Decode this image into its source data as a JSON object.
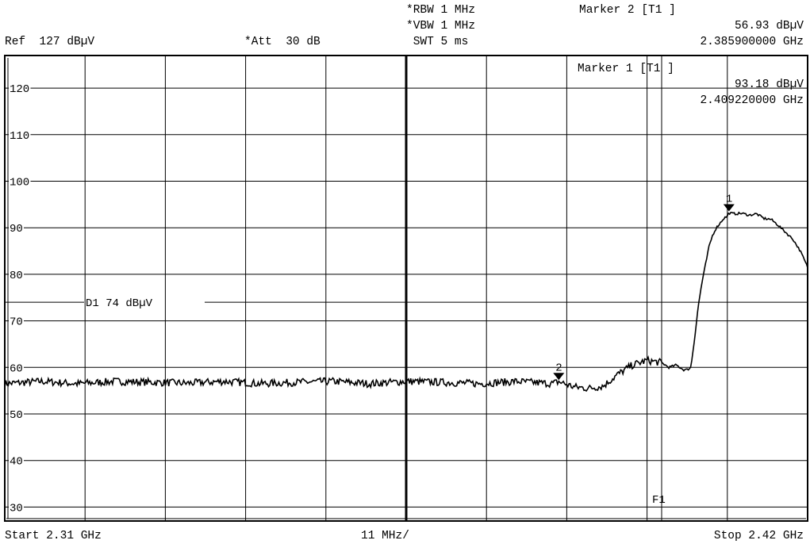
{
  "header": {
    "ref": "Ref  127 dBµV",
    "att": "*Att  30 dB",
    "rbw": "*RBW 1 MHz",
    "vbw": "*VBW 1 MHz",
    "swt": " SWT 5 ms",
    "marker2_title": "Marker 2 [T1 ]",
    "marker2_level": "56.93 dBµV",
    "marker2_freq": "2.385900000 GHz"
  },
  "marker1_box": {
    "title": "Marker 1 [T1 ]",
    "level": "93.18 dBµV",
    "freq": "2.409220000 GHz"
  },
  "footer": {
    "start": "Start 2.31 GHz",
    "span": "11 MHz/",
    "stop": "Stop 2.42 GHz"
  },
  "chart_data": {
    "type": "line",
    "xlim": [
      2.31,
      2.42
    ],
    "ylim": [
      27,
      127
    ],
    "x_unit": "GHz",
    "y_unit": "dBµV",
    "grid": true,
    "y_ticks": [
      120,
      110,
      100,
      90,
      80,
      70,
      60,
      50,
      40,
      30
    ],
    "y_tick_labels": [
      "120",
      "110",
      "100",
      "90",
      "80",
      "70",
      "60",
      "50",
      "40",
      "30"
    ],
    "display_line": {
      "label": "D1 74 dBµV",
      "value": 74
    },
    "frequency_line": {
      "label": "F1",
      "x": 2.4
    },
    "markers": [
      {
        "label": "1",
        "x": 2.40922,
        "y": 93.18
      },
      {
        "label": "2",
        "x": 2.3859,
        "y": 56.93
      }
    ],
    "series": [
      {
        "x": [
          2.31,
          2.315,
          2.32,
          2.325,
          2.33,
          2.335,
          2.34,
          2.345,
          2.35,
          2.355,
          2.36,
          2.365,
          2.37,
          2.375,
          2.38,
          2.385,
          2.3859,
          2.388,
          2.39,
          2.392,
          2.394,
          2.396,
          2.398,
          2.4,
          2.401,
          2.402,
          2.403,
          2.4035,
          2.404,
          2.4045,
          2.405,
          2.4055,
          2.406,
          2.4065,
          2.407,
          2.4075,
          2.408,
          2.4085,
          2.409,
          2.40922,
          2.41,
          2.411,
          2.412,
          2.413,
          2.414,
          2.415,
          2.416,
          2.417,
          2.418,
          2.419,
          2.42
        ],
        "y": [
          56.5,
          57,
          56.5,
          57,
          56.8,
          56.6,
          57,
          56.5,
          56.8,
          57,
          56.5,
          57,
          56.8,
          56.5,
          57,
          56.5,
          56.93,
          55.8,
          55.5,
          56,
          58.5,
          60.5,
          61.5,
          61,
          60,
          60.5,
          59.5,
          59.5,
          60,
          66,
          73,
          78,
          82,
          86,
          88.5,
          90,
          91,
          92,
          92.5,
          93.18,
          93,
          93.1,
          92.7,
          93,
          92,
          91.8,
          90.5,
          89,
          87.5,
          85,
          81.5
        ]
      }
    ]
  }
}
